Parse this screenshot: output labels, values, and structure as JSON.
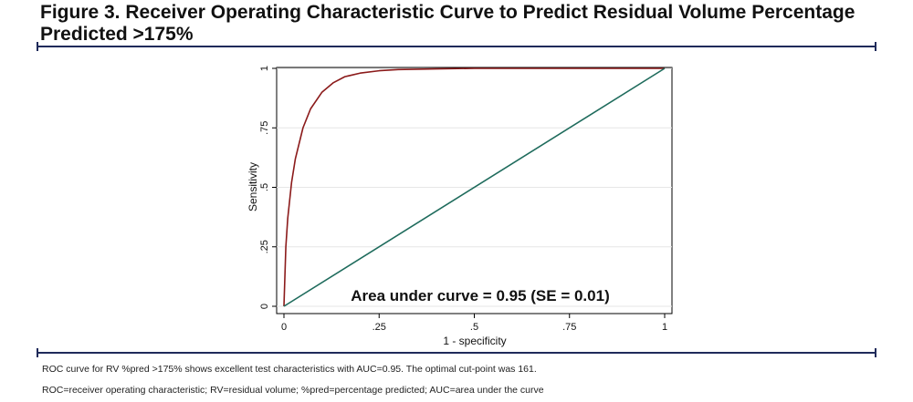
{
  "figure": {
    "title": "Figure 3. Receiver Operating Characteristic Curve to Predict Residual Volume Percentage Predicted >175%",
    "caption_main": "ROC curve for RV %pred >175% shows excellent test characteristics with AUC=0.95. The optimal cut-point was 161.",
    "caption_abbrev": "ROC=receiver operating characteristic; RV=residual volume; %pred=percentage predicted; AUC=area under the curve",
    "rule_color": "#1f2a5a"
  },
  "chart_data": {
    "type": "line",
    "xlabel": "1 - specificity",
    "ylabel": "Sensitivity",
    "xlim": [
      0,
      1
    ],
    "ylim": [
      0,
      1
    ],
    "xticks": [
      0,
      0.25,
      0.5,
      0.75,
      1
    ],
    "xtick_labels": [
      "0",
      ".25",
      ".5",
      ".75",
      "1"
    ],
    "yticks": [
      0,
      0.25,
      0.5,
      0.75,
      1
    ],
    "ytick_labels": [
      "0",
      ".25",
      ".5",
      ".75",
      "1"
    ],
    "grid": true,
    "annotation": "Area under curve = 0.95  (SE = 0.01)",
    "series": [
      {
        "color": "#8b1a1a",
        "x": [
          0,
          0.005,
          0.01,
          0.02,
          0.03,
          0.05,
          0.07,
          0.1,
          0.13,
          0.16,
          0.2,
          0.25,
          0.3,
          0.4,
          0.5,
          0.6,
          0.7,
          0.8,
          0.9,
          1
        ],
        "y": [
          0,
          0.25,
          0.37,
          0.52,
          0.62,
          0.75,
          0.83,
          0.9,
          0.94,
          0.965,
          0.98,
          0.99,
          0.995,
          0.998,
          1,
          1,
          1,
          1,
          1,
          1
        ]
      },
      {
        "color": "#1e6b5c",
        "x": [
          0,
          1
        ],
        "y": [
          0,
          1
        ]
      }
    ]
  }
}
